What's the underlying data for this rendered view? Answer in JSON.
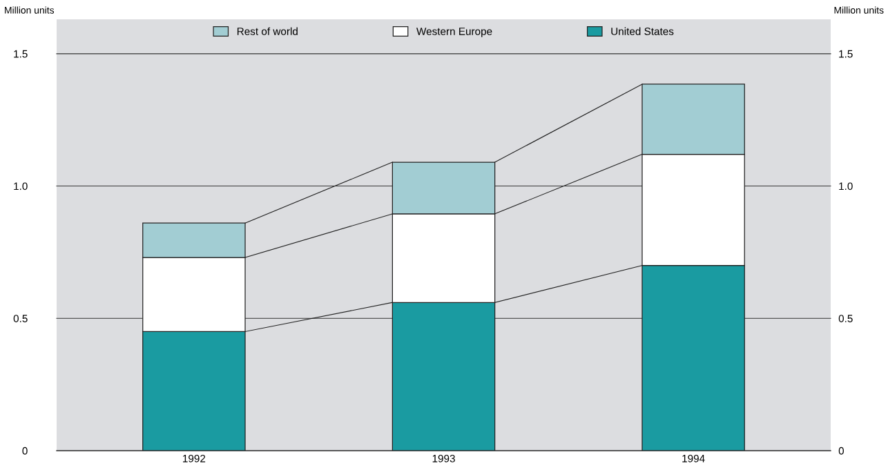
{
  "chart_data": {
    "type": "bar",
    "stacked": true,
    "ylabel": "Million units",
    "y2label": "Million units",
    "categories": [
      "1992",
      "1993",
      "1994"
    ],
    "series": [
      {
        "name": "United States",
        "color": "#1a9ba1",
        "values": [
          0.45,
          0.56,
          0.7
        ]
      },
      {
        "name": "Western Europe",
        "color": "#ffffff",
        "values": [
          0.28,
          0.335,
          0.42
        ]
      },
      {
        "name": "Rest of world",
        "color": "#a2cdd3",
        "values": [
          0.13,
          0.195,
          0.265
        ]
      }
    ],
    "ylim": [
      0,
      1.63
    ],
    "yticks": [
      0,
      {
        "value": 0.5,
        "label": "0.5"
      },
      {
        "value": 1.0,
        "label": "1.0"
      },
      {
        "value": 1.5,
        "label": "1.5"
      }
    ],
    "y2lim": [
      0,
      1.63
    ],
    "y2ticks": [
      0,
      {
        "value": 0.5,
        "label": "0.5"
      },
      {
        "value": 1.0,
        "label": "1.0"
      },
      {
        "value": 1.5,
        "label": "1.5"
      }
    ],
    "grid": "y",
    "legend": "top"
  }
}
